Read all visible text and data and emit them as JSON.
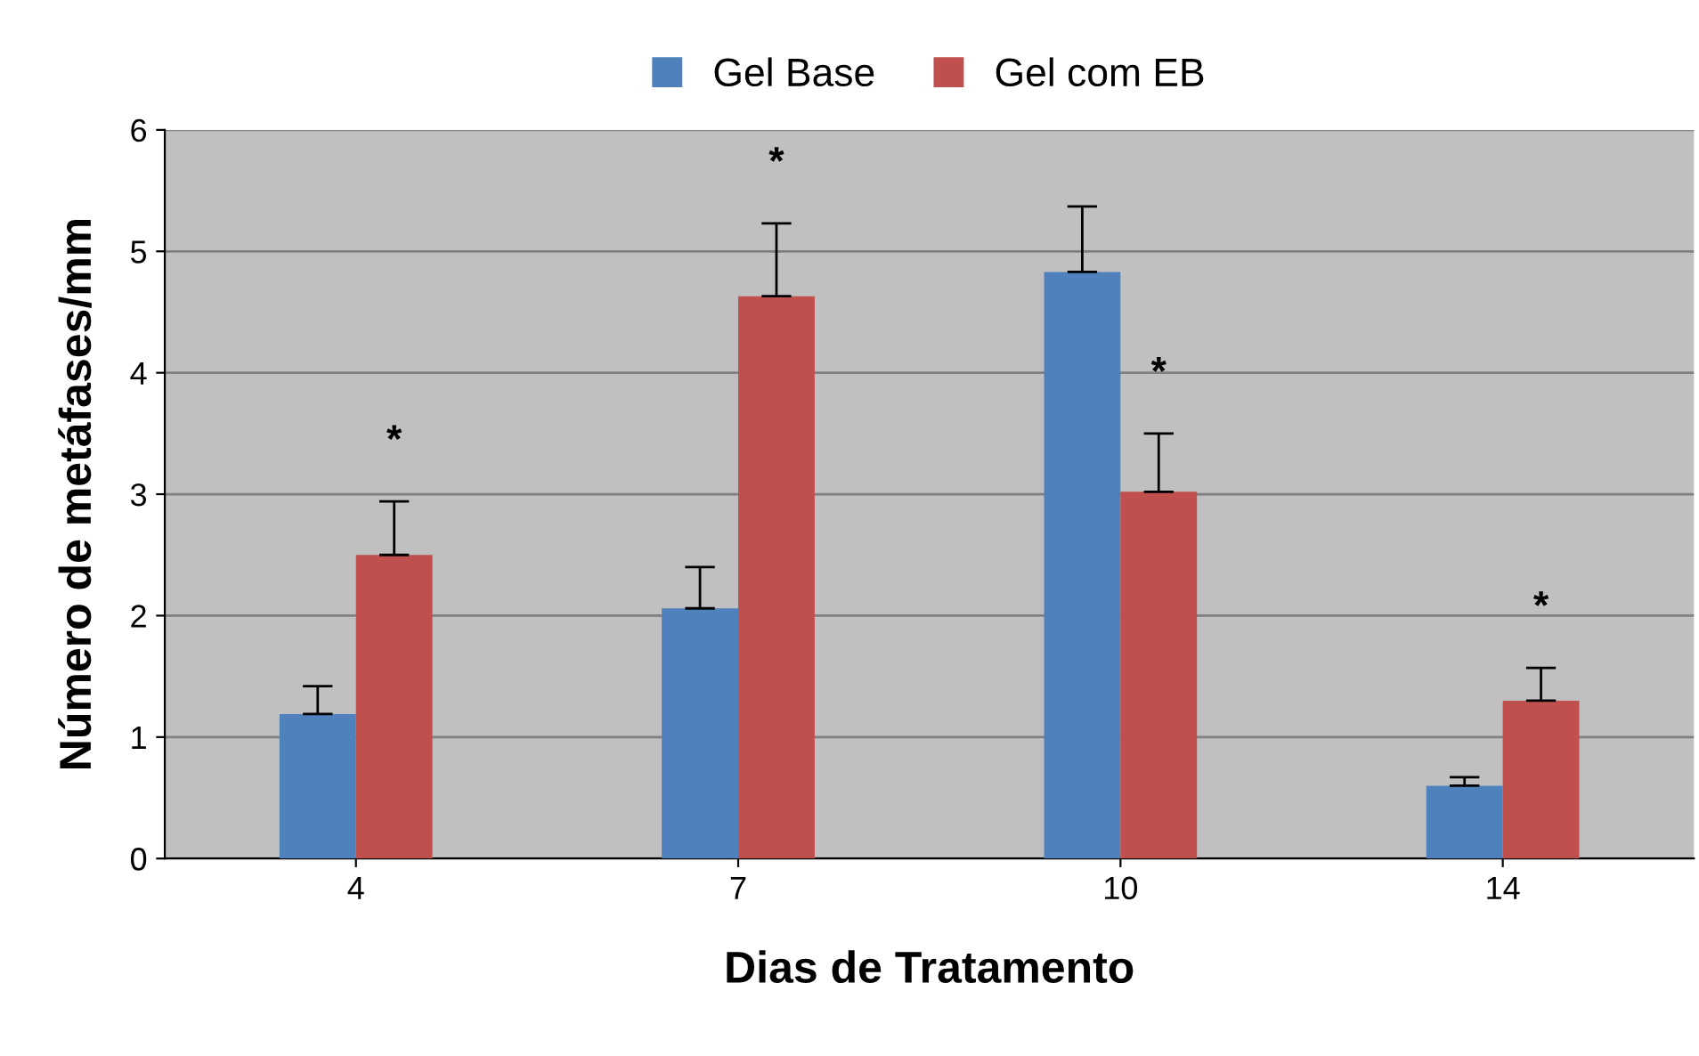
{
  "chart_data": {
    "type": "bar",
    "xlabel": "Dias de Tratamento",
    "ylabel": "Número de metáfases/mm",
    "categories": [
      "4",
      "7",
      "10",
      "14"
    ],
    "series": [
      {
        "name": "Gel Base",
        "color": "#4f81bd",
        "values": [
          1.19,
          2.06,
          4.83,
          0.6
        ],
        "errors": [
          [
            1.19,
            1.42
          ],
          [
            2.06,
            2.4
          ],
          [
            4.83,
            5.37
          ],
          [
            0.6,
            0.67
          ]
        ]
      },
      {
        "name": "Gel com EB",
        "color": "#c0504d",
        "values": [
          2.5,
          4.63,
          3.02,
          1.3
        ],
        "errors": [
          [
            2.5,
            2.94
          ],
          [
            4.63,
            5.23
          ],
          [
            3.02,
            3.5
          ],
          [
            1.3,
            1.57
          ]
        ]
      }
    ],
    "ylim": [
      0,
      6
    ],
    "yticks": [
      0,
      1,
      2,
      3,
      4,
      5,
      6
    ],
    "grid": "y",
    "legend": "top",
    "annotations": [
      "*",
      "*",
      "*",
      "*"
    ]
  }
}
